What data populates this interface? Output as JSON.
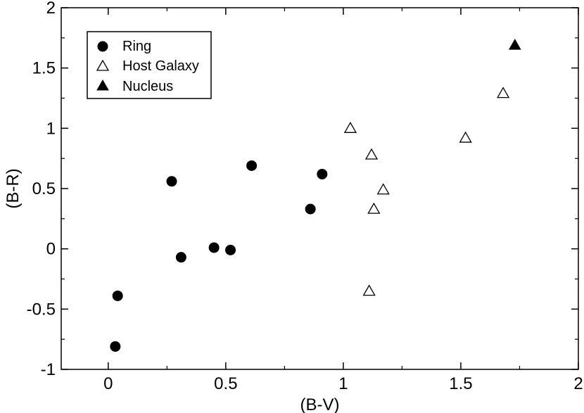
{
  "chart_data": {
    "type": "scatter",
    "title": "",
    "xlabel": "(B-V)",
    "ylabel": "(B-R)",
    "xlim": [
      -0.2,
      2
    ],
    "ylim": [
      -1,
      2
    ],
    "xticks": [
      0,
      0.5,
      1,
      1.5,
      2
    ],
    "yticks": [
      -1,
      -0.5,
      0,
      0.5,
      1,
      1.5,
      2
    ],
    "xtick_labels": [
      "0",
      "0.5",
      "1",
      "1.5",
      "2"
    ],
    "ytick_labels": [
      "-1",
      "-0.5",
      "0",
      "0.5",
      "1",
      "1.5",
      "2"
    ],
    "grid": false,
    "legend_position": "top-left",
    "series": [
      {
        "name": "Ring",
        "marker": "filled-circle",
        "color": "#000000",
        "points": [
          {
            "x": 0.03,
            "y": -0.81
          },
          {
            "x": 0.04,
            "y": -0.39
          },
          {
            "x": 0.27,
            "y": 0.56
          },
          {
            "x": 0.31,
            "y": -0.07
          },
          {
            "x": 0.45,
            "y": 0.01
          },
          {
            "x": 0.52,
            "y": -0.01
          },
          {
            "x": 0.61,
            "y": 0.69
          },
          {
            "x": 0.86,
            "y": 0.33
          },
          {
            "x": 0.91,
            "y": 0.62
          }
        ]
      },
      {
        "name": "Host Galaxy",
        "marker": "open-triangle",
        "color": "#000000",
        "points": [
          {
            "x": 1.03,
            "y": 1.0
          },
          {
            "x": 1.11,
            "y": -0.35
          },
          {
            "x": 1.12,
            "y": 0.78
          },
          {
            "x": 1.13,
            "y": 0.33
          },
          {
            "x": 1.17,
            "y": 0.49
          },
          {
            "x": 1.52,
            "y": 0.92
          },
          {
            "x": 1.68,
            "y": 1.29
          }
        ]
      },
      {
        "name": "Nucleus",
        "marker": "filled-triangle",
        "color": "#000000",
        "points": [
          {
            "x": 1.73,
            "y": 1.69
          }
        ]
      }
    ]
  }
}
